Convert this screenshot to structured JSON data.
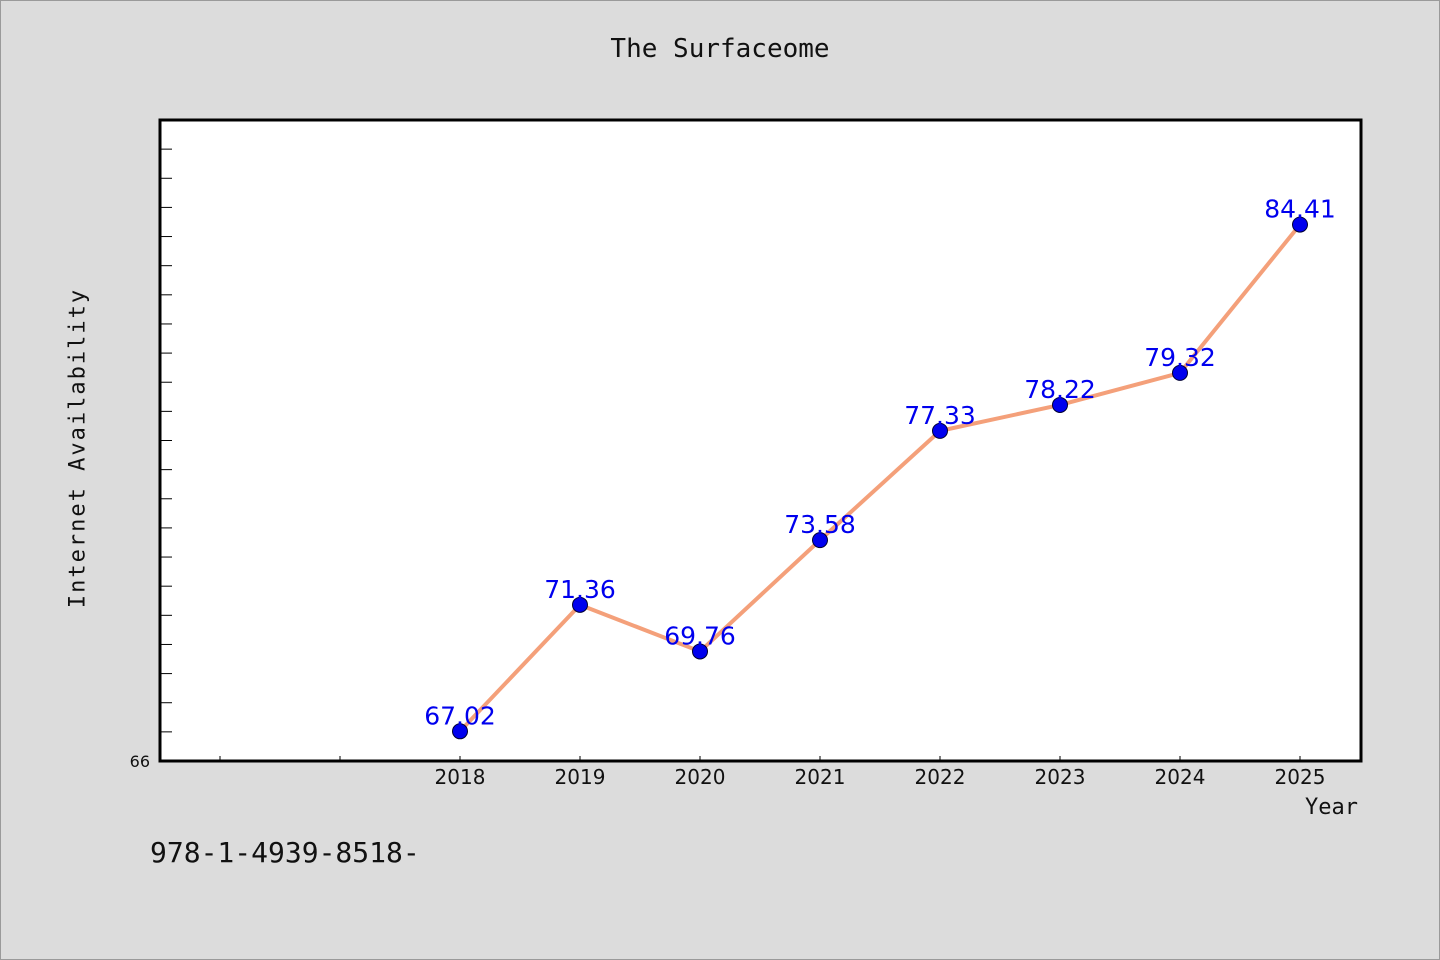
{
  "chart_data": {
    "type": "line",
    "title": "The Surfaceome",
    "xlabel": "Year",
    "ylabel": "Internet Availability",
    "x_ticks": [
      "2018",
      "2019",
      "2020",
      "2021",
      "2022",
      "2023",
      "2024",
      "2025"
    ],
    "y_tick_labels": [
      "66"
    ],
    "ylim": [
      66,
      88
    ],
    "series": [
      {
        "x": [
          "2018",
          "2019",
          "2020",
          "2021",
          "2022",
          "2023",
          "2024",
          "2025"
        ],
        "values": [
          67.02,
          71.36,
          69.76,
          73.58,
          77.33,
          78.22,
          79.32,
          84.41
        ],
        "labels": [
          "67.02",
          "71.36",
          "69.76",
          "73.58",
          "77.33",
          "78.22",
          "79.32",
          "84.41"
        ]
      }
    ],
    "line_color": "#f4a07a",
    "marker_color": "#0000ee",
    "label_color": "#0000ee",
    "grid": false,
    "legend": "none"
  },
  "footer": {
    "text": "978-1-4939-8518-"
  }
}
